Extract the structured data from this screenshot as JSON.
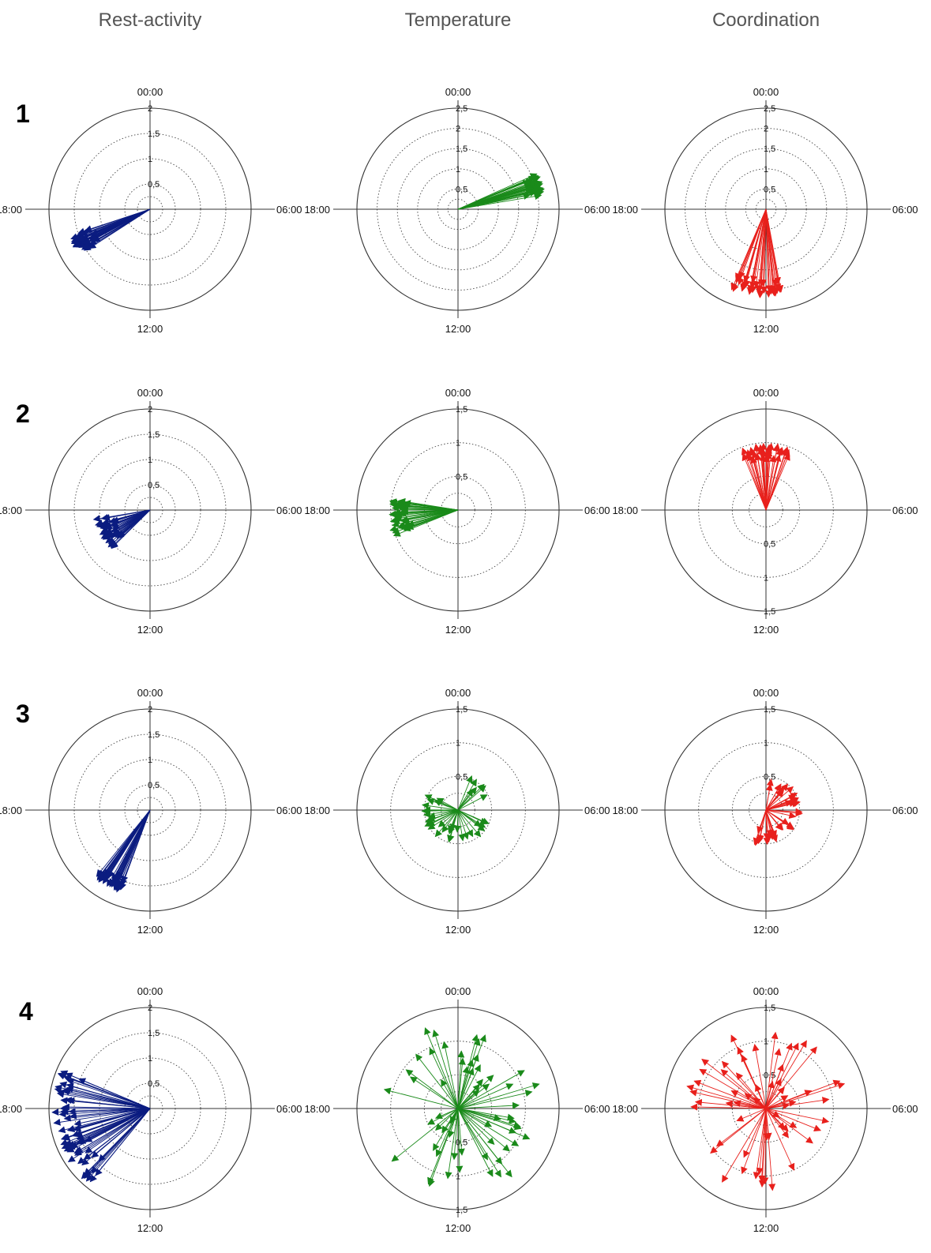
{
  "columns": [
    "Rest-activity",
    "Temperature",
    "Coordination"
  ],
  "row_labels": [
    "1",
    "2",
    "3",
    "4"
  ],
  "colors": {
    "Rest-activity": "#0b1c80",
    "Temperature": "#1a8a1a",
    "Coordination": "#e8201c",
    "axis": "#333333"
  },
  "chart_data": [
    {
      "type": "polar-vector",
      "row": "1",
      "column": "Rest-activity",
      "time_labels": [
        "00:00",
        "06:00",
        "12:00",
        "18:00"
      ],
      "radial_ticks": [
        "0,5",
        "1",
        "1,5",
        "2"
      ],
      "rmax": 2,
      "tick_half": "top",
      "arrows": {
        "count": 40,
        "hour_range": [
          15.8,
          16.8
        ],
        "amplitude_range": [
          1.25,
          1.7
        ]
      }
    },
    {
      "type": "polar-vector",
      "row": "1",
      "column": "Temperature",
      "time_labels": [
        "00:00",
        "06:00",
        "12:00",
        "18:00"
      ],
      "radial_ticks": [
        "0,5",
        "1",
        "1,5",
        "2",
        "2,5"
      ],
      "rmax": 2.5,
      "tick_half": "top",
      "arrows": {
        "count": 40,
        "hour_range": [
          4.3,
          5.4
        ],
        "amplitude_range": [
          1.8,
          2.2
        ]
      }
    },
    {
      "type": "polar-vector",
      "row": "1",
      "column": "Coordination",
      "time_labels": [
        "00:00",
        "06:00",
        "12:00",
        "18:00"
      ],
      "radial_ticks": [
        "0,5",
        "1",
        "1,5",
        "2",
        "2,5"
      ],
      "rmax": 2.5,
      "tick_half": "top",
      "arrows": {
        "count": 40,
        "hour_range": [
          11.3,
          13.6
        ],
        "amplitude_range": [
          1.8,
          2.2
        ]
      }
    },
    {
      "type": "polar-vector",
      "row": "2",
      "column": "Rest-activity",
      "time_labels": [
        "00:00",
        "06:00",
        "12:00",
        "18:00"
      ],
      "radial_ticks": [
        "0,5",
        "1",
        "1,5",
        "2"
      ],
      "rmax": 2,
      "tick_half": "top",
      "arrows": {
        "count": 40,
        "hour_range": [
          15.0,
          17.4
        ],
        "amplitude_range": [
          0.75,
          1.15
        ]
      }
    },
    {
      "type": "polar-vector",
      "row": "2",
      "column": "Temperature",
      "time_labels": [
        "00:00",
        "06:00",
        "12:00",
        "18:00"
      ],
      "radial_ticks": [
        "0,5",
        "1",
        "1,5"
      ],
      "rmax": 1.5,
      "tick_half": "top",
      "arrows": {
        "count": 40,
        "hour_range": [
          16.5,
          18.7
        ],
        "amplitude_range": [
          0.75,
          1.05
        ]
      }
    },
    {
      "type": "polar-vector",
      "row": "2",
      "column": "Coordination",
      "time_labels": [
        "00:00",
        "06:00",
        "12:00",
        "18:00"
      ],
      "radial_ticks": [
        "0,5",
        "1",
        "1,5"
      ],
      "rmax": 1.5,
      "tick_half": "bottom",
      "arrows": {
        "count": 40,
        "hour_range": [
          22.5,
          1.6
        ],
        "amplitude_range": [
          0.8,
          1.0
        ]
      }
    },
    {
      "type": "polar-vector",
      "row": "3",
      "column": "Rest-activity",
      "time_labels": [
        "00:00",
        "06:00",
        "12:00",
        "18:00"
      ],
      "radial_ticks": [
        "0,5",
        "1",
        "1,5",
        "2"
      ],
      "rmax": 2,
      "tick_half": "top",
      "arrows": {
        "count": 40,
        "hour_range": [
          13.3,
          14.6
        ],
        "amplitude_range": [
          1.45,
          1.75
        ]
      }
    },
    {
      "type": "polar-vector",
      "row": "3",
      "column": "Temperature",
      "time_labels": [
        "00:00",
        "06:00",
        "12:00",
        "18:00"
      ],
      "radial_ticks": [
        "0,5",
        "1",
        "1,5"
      ],
      "rmax": 1.5,
      "tick_half": "top",
      "arrows": {
        "count": 40,
        "hour_range": [
          1.0,
          20.0
        ],
        "amplitude_range": [
          0.3,
          0.55
        ]
      }
    },
    {
      "type": "polar-vector",
      "row": "3",
      "column": "Coordination",
      "time_labels": [
        "00:00",
        "06:00",
        "12:00",
        "18:00"
      ],
      "radial_ticks": [
        "0,5",
        "1",
        "1,5"
      ],
      "rmax": 1.5,
      "tick_half": "top",
      "arrows": {
        "count": 40,
        "hour_range": [
          0.5,
          13.5
        ],
        "amplitude_range": [
          0.3,
          0.55
        ]
      }
    },
    {
      "type": "polar-vector",
      "row": "4",
      "column": "Rest-activity",
      "time_labels": [
        "00:00",
        "06:00",
        "12:00",
        "18:00"
      ],
      "radial_ticks": [
        "0,5",
        "1",
        "1,5",
        "2"
      ],
      "rmax": 2,
      "tick_half": "top",
      "arrows": {
        "count": 70,
        "hour_range": [
          14.6,
          19.8
        ],
        "amplitude_range": [
          1.4,
          1.95
        ]
      }
    },
    {
      "type": "polar-vector",
      "row": "4",
      "column": "Temperature",
      "time_labels": [
        "00:00",
        "06:00",
        "12:00",
        "18:00"
      ],
      "radial_ticks": [
        "0,5",
        "1",
        "1,5"
      ],
      "rmax": 1.5,
      "tick_half": "bottom",
      "arrows": {
        "count": 60,
        "hour_range": [
          0.0,
          24.0
        ],
        "amplitude_range": [
          0.2,
          1.3
        ]
      }
    },
    {
      "type": "polar-vector",
      "row": "4",
      "column": "Coordination",
      "time_labels": [
        "00:00",
        "06:00",
        "12:00",
        "18:00"
      ],
      "radial_ticks": [
        "0,5",
        "1",
        "1,5"
      ],
      "rmax": 1.5,
      "tick_half": "top",
      "arrows": {
        "count": 60,
        "hour_range": [
          0.0,
          24.0
        ],
        "amplitude_range": [
          0.2,
          1.3
        ]
      }
    }
  ]
}
